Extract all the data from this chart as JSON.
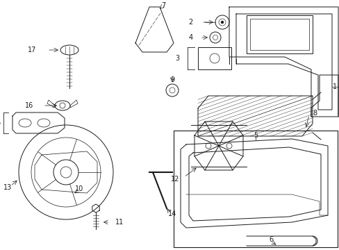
{
  "bg_color": "#ffffff",
  "line_color": "#1a1a1a",
  "figsize": [
    4.89,
    3.6
  ],
  "dpi": 100,
  "components": {
    "layout": "technical_diagram"
  }
}
